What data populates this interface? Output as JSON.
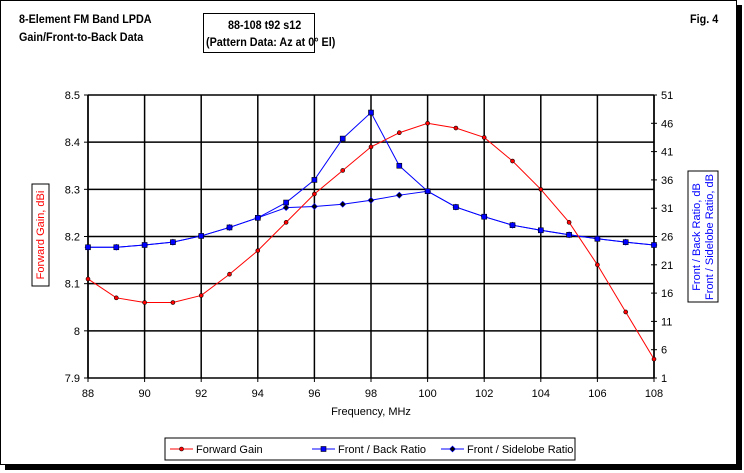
{
  "header": {
    "title_line1": "8-Element FM Band LPDA",
    "title_line2": "Gain/Front-to-Back Data",
    "box_line1": "88-108 t92 s12",
    "box_line2": "(Pattern Data: Az at 0° El)",
    "fig_label": "Fig. 4"
  },
  "chart_data": {
    "type": "line",
    "xlabel": "Frequency, MHz",
    "ylabel_left": "Forward Gain, dBi",
    "ylabel_right_line1": "Front / Back Ratio,  dB",
    "ylabel_right_line2": "Front / Sidelobe Ratio,  dB",
    "xlim": [
      88,
      108
    ],
    "ylim_left": [
      7.9,
      8.5
    ],
    "ylim_right": [
      1,
      51
    ],
    "x_ticks": [
      "88",
      "90",
      "92",
      "94",
      "96",
      "98",
      "100",
      "102",
      "104",
      "106",
      "108"
    ],
    "y_left_ticks": [
      "7.9",
      "8",
      "8.1",
      "8.2",
      "8.3",
      "8.4",
      "8.5"
    ],
    "y_right_ticks": [
      "1",
      "6",
      "11",
      "16",
      "21",
      "26",
      "31",
      "36",
      "41",
      "46",
      "51"
    ],
    "grid": true,
    "legend_position": "bottom",
    "x": [
      88,
      89,
      90,
      91,
      92,
      93,
      94,
      95,
      96,
      97,
      98,
      99,
      100,
      101,
      102,
      103,
      104,
      105,
      106,
      107,
      108
    ],
    "series": [
      {
        "name": "Forward Gain",
        "axis": "left",
        "color": "#ff0000",
        "marker": "circle",
        "values": [
          8.11,
          8.07,
          8.06,
          8.06,
          8.075,
          8.12,
          8.17,
          8.23,
          8.29,
          8.34,
          8.39,
          8.42,
          8.44,
          8.43,
          8.41,
          8.36,
          8.3,
          8.23,
          8.14,
          8.04,
          7.94
        ]
      },
      {
        "name": "Front / Back Ratio",
        "axis": "right",
        "color": "#0000ff",
        "marker": "square",
        "values": [
          24.1,
          24.1,
          24.5,
          25.0,
          26.1,
          27.6,
          29.3,
          32.0,
          36.0,
          43.3,
          47.9,
          38.5,
          34.0,
          31.2,
          29.5,
          28.0,
          27.1,
          26.3,
          25.6,
          25.0,
          24.5
        ]
      },
      {
        "name": "Front / Sidelobe Ratio",
        "axis": "right",
        "color": "#0000ff",
        "marker": "diamond",
        "values": [
          24.1,
          24.1,
          24.5,
          25.0,
          26.1,
          27.6,
          29.3,
          31.1,
          31.3,
          31.7,
          32.4,
          33.3,
          34.0,
          31.2,
          29.5,
          28.0,
          27.1,
          26.3,
          25.6,
          25.0,
          24.5
        ]
      }
    ]
  }
}
